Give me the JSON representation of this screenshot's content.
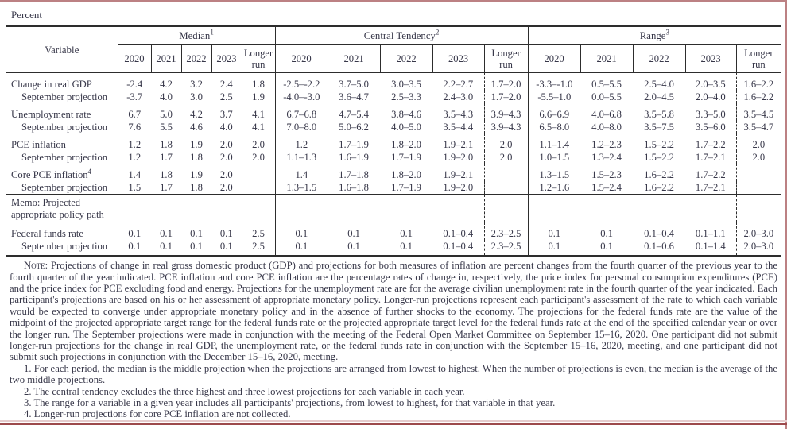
{
  "colors": {
    "frame": "#bc8183",
    "frame_dark": "#9d4a4c",
    "frame_light": "#e6cccd",
    "text": "#373749",
    "rule": "#2d2d2d"
  },
  "page": {
    "unit_label": "Percent"
  },
  "table": {
    "variable_header": "Variable",
    "groups": [
      {
        "label": "Median",
        "sup": "1"
      },
      {
        "label": "Central Tendency",
        "sup": "2"
      },
      {
        "label": "Range",
        "sup": "3"
      }
    ],
    "year_headers": [
      "2020",
      "2021",
      "2022",
      "2023",
      "Longer run"
    ],
    "rows": [
      {
        "label": "Change in real GDP",
        "gap": true,
        "median": [
          "-2.4",
          "4.2",
          "3.2",
          "2.4",
          "1.8"
        ],
        "central": [
          "-2.5–-2.2",
          "3.7–5.0",
          "3.0–3.5",
          "2.2–2.7",
          "1.7–2.0"
        ],
        "range": [
          "-3.3–-1.0",
          "0.5–5.5",
          "2.5–4.0",
          "2.0–3.5",
          "1.6–2.2"
        ]
      },
      {
        "label": "September projection",
        "indent": true,
        "median": [
          "-3.7",
          "4.0",
          "3.0",
          "2.5",
          "1.9"
        ],
        "central": [
          "-4.0–-3.0",
          "3.6–4.7",
          "2.5–3.3",
          "2.4–3.0",
          "1.7–2.0"
        ],
        "range": [
          "-5.5–1.0",
          "0.0–5.5",
          "2.0–4.5",
          "2.0–4.0",
          "1.6–2.2"
        ]
      },
      {
        "label": "Unemployment rate",
        "gap": true,
        "median": [
          "6.7",
          "5.0",
          "4.2",
          "3.7",
          "4.1"
        ],
        "central": [
          "6.7–6.8",
          "4.7–5.4",
          "3.8–4.6",
          "3.5–4.3",
          "3.9–4.3"
        ],
        "range": [
          "6.6–6.9",
          "4.0–6.8",
          "3.5–5.8",
          "3.3–5.0",
          "3.5–4.5"
        ]
      },
      {
        "label": "September projection",
        "indent": true,
        "median": [
          "7.6",
          "5.5",
          "4.6",
          "4.0",
          "4.1"
        ],
        "central": [
          "7.0–8.0",
          "5.0–6.2",
          "4.0–5.0",
          "3.5–4.4",
          "3.9–4.3"
        ],
        "range": [
          "6.5–8.0",
          "4.0–8.0",
          "3.5–7.5",
          "3.5–6.0",
          "3.5–4.7"
        ]
      },
      {
        "label": "PCE inflation",
        "gap": true,
        "median": [
          "1.2",
          "1.8",
          "1.9",
          "2.0",
          "2.0"
        ],
        "central": [
          "1.2",
          "1.7–1.9",
          "1.8–2.0",
          "1.9–2.1",
          "2.0"
        ],
        "range": [
          "1.1–1.4",
          "1.2–2.3",
          "1.5–2.2",
          "1.7–2.2",
          "2.0"
        ]
      },
      {
        "label": "September projection",
        "indent": true,
        "median": [
          "1.2",
          "1.7",
          "1.8",
          "2.0",
          "2.0"
        ],
        "central": [
          "1.1–1.3",
          "1.6–1.9",
          "1.7–1.9",
          "1.9–2.0",
          "2.0"
        ],
        "range": [
          "1.0–1.5",
          "1.3–2.4",
          "1.5–2.2",
          "1.7–2.1",
          "2.0"
        ]
      },
      {
        "label": "Core PCE inflation",
        "sup": "4",
        "gap": true,
        "median": [
          "1.4",
          "1.8",
          "1.9",
          "2.0",
          ""
        ],
        "central": [
          "1.4",
          "1.7–1.8",
          "1.8–2.0",
          "1.9–2.1",
          ""
        ],
        "range": [
          "1.3–1.5",
          "1.5–2.3",
          "1.6–2.2",
          "1.7–2.2",
          ""
        ]
      },
      {
        "label": "September projection",
        "indent": true,
        "median": [
          "1.5",
          "1.7",
          "1.8",
          "2.0",
          ""
        ],
        "central": [
          "1.3–1.5",
          "1.6–1.8",
          "1.7–1.9",
          "1.9–2.0",
          ""
        ],
        "range": [
          "1.2–1.6",
          "1.5–2.4",
          "1.6–2.2",
          "1.7–2.1",
          ""
        ]
      },
      {
        "label": "Memo: Projected appropriate policy path",
        "type": "memo"
      },
      {
        "label": "Federal funds rate",
        "gap": true,
        "median": [
          "0.1",
          "0.1",
          "0.1",
          "0.1",
          "2.5"
        ],
        "central": [
          "0.1",
          "0.1",
          "0.1",
          "0.1–0.4",
          "2.3–2.5"
        ],
        "range": [
          "0.1",
          "0.1",
          "0.1–0.4",
          "0.1–1.1",
          "2.0–3.0"
        ]
      },
      {
        "label": "September projection",
        "indent": true,
        "last": true,
        "median": [
          "0.1",
          "0.1",
          "0.1",
          "0.1",
          "2.5"
        ],
        "central": [
          "0.1",
          "0.1",
          "0.1",
          "0.1–0.4",
          "2.3–2.5"
        ],
        "range": [
          "0.1",
          "0.1",
          "0.1–0.6",
          "0.1–1.4",
          "2.0–3.0"
        ]
      }
    ]
  },
  "notes": {
    "note_label": "Note:",
    "note_text": "Projections of change in real gross domestic product (GDP) and projections for both measures of inflation are percent changes from the fourth quarter of the previous year to the fourth quarter of the year indicated. PCE inflation and core PCE inflation are the percentage rates of change in, respectively, the price index for personal consumption expenditures (PCE) and the price index for PCE excluding food and energy. Projections for the unemployment rate are for the average civilian unemployment rate in the fourth quarter of the year indicated. Each participant's projections are based on his or her assessment of appropriate monetary policy. Longer-run projections represent each participant's assessment of the rate to which each variable would be expected to converge under appropriate monetary policy and in the absence of further shocks to the economy. The projections for the federal funds rate are the value of the midpoint of the projected appropriate target range for the federal funds rate or the projected appropriate target level for the federal funds rate at the end of the specified calendar year or over the longer run. The September projections were made in conjunction with the meeting of the Federal Open Market Committee on September 15–16, 2020. One participant did not submit longer-run projections for the change in real GDP, the unemployment rate, or the federal funds rate in conjunction with the September 15–16, 2020, meeting, and one participant did not submit such projections in conjunction with the December 15–16, 2020, meeting.",
    "footnotes": [
      "1. For each period, the median is the middle projection when the projections are arranged from lowest to highest. When the number of projections is even, the median is the average of the two middle projections.",
      "2. The central tendency excludes the three highest and three lowest projections for each variable in each year.",
      "3. The range for a variable in a given year includes all participants' projections, from lowest to highest, for that variable in that year.",
      "4. Longer-run projections for core PCE inflation are not collected."
    ]
  }
}
